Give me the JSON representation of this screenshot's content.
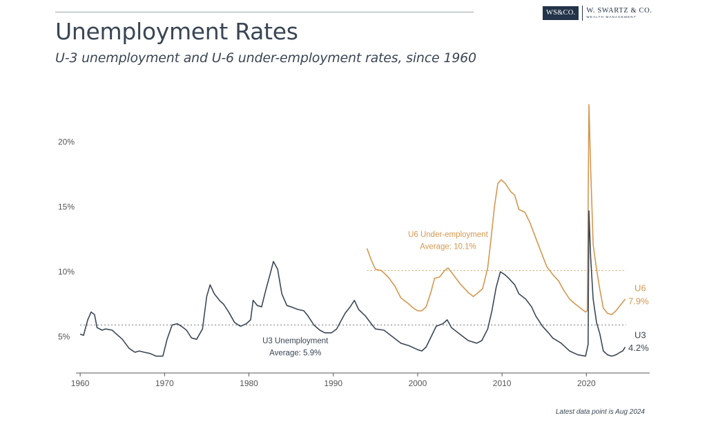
{
  "header": {
    "brand_box": "WS&CO.",
    "brand_name": "W. SWARTZ & CO.",
    "brand_sub": "WEALTH MANAGEMENT"
  },
  "footnote": "Latest data point is Aug 2024",
  "colors": {
    "u3": "#3a4654",
    "u6": "#d4974f",
    "axis": "#555555"
  },
  "chart_data": {
    "type": "line",
    "title": "Unemployment Rates",
    "subtitle": "U-3 unemployment and U-6 under-employment rates, since 1960",
    "xlabel": "",
    "ylabel": "",
    "xlim": [
      1959.5,
      2027.5
    ],
    "ylim": [
      2.2,
      23.5
    ],
    "x_ticks": [
      1960,
      1970,
      1980,
      1990,
      2000,
      2010,
      2020
    ],
    "y_ticks": [
      5,
      10,
      15,
      20
    ],
    "y_tick_labels": [
      "5%",
      "10%",
      "15%",
      "20%"
    ],
    "grid": false,
    "series": [
      {
        "name": "U3",
        "end_label": "4.2%",
        "annotation": "U3 Unemployment",
        "average_label": "Average: 5.9%",
        "average": 5.9,
        "color": "#3a4654",
        "points": [
          [
            1960,
            5.2
          ],
          [
            1960.4,
            5.1
          ],
          [
            1960.9,
            6.3
          ],
          [
            1961.3,
            6.9
          ],
          [
            1961.7,
            6.7
          ],
          [
            1962,
            5.7
          ],
          [
            1962.6,
            5.5
          ],
          [
            1963,
            5.6
          ],
          [
            1963.8,
            5.5
          ],
          [
            1964.3,
            5.2
          ],
          [
            1965,
            4.8
          ],
          [
            1965.8,
            4.1
          ],
          [
            1966.5,
            3.8
          ],
          [
            1967,
            3.9
          ],
          [
            1967.6,
            3.8
          ],
          [
            1968.3,
            3.7
          ],
          [
            1969,
            3.5
          ],
          [
            1969.8,
            3.5
          ],
          [
            1970.3,
            4.8
          ],
          [
            1970.9,
            5.9
          ],
          [
            1971.5,
            6.0
          ],
          [
            1972,
            5.8
          ],
          [
            1972.6,
            5.5
          ],
          [
            1973.2,
            4.9
          ],
          [
            1973.8,
            4.8
          ],
          [
            1974.5,
            5.6
          ],
          [
            1975,
            8.1
          ],
          [
            1975.4,
            9.0
          ],
          [
            1975.9,
            8.3
          ],
          [
            1976.5,
            7.8
          ],
          [
            1977,
            7.5
          ],
          [
            1977.6,
            6.9
          ],
          [
            1978.3,
            6.1
          ],
          [
            1979,
            5.8
          ],
          [
            1979.7,
            6.0
          ],
          [
            1980.2,
            6.3
          ],
          [
            1980.5,
            7.8
          ],
          [
            1981,
            7.4
          ],
          [
            1981.5,
            7.3
          ],
          [
            1982,
            8.6
          ],
          [
            1982.5,
            9.8
          ],
          [
            1982.9,
            10.8
          ],
          [
            1983.4,
            10.2
          ],
          [
            1983.9,
            8.3
          ],
          [
            1984.5,
            7.4
          ],
          [
            1985,
            7.3
          ],
          [
            1985.8,
            7.1
          ],
          [
            1986.5,
            7.0
          ],
          [
            1987,
            6.6
          ],
          [
            1987.7,
            5.9
          ],
          [
            1988.4,
            5.5
          ],
          [
            1989,
            5.3
          ],
          [
            1989.8,
            5.3
          ],
          [
            1990.4,
            5.6
          ],
          [
            1990.9,
            6.2
          ],
          [
            1991.4,
            6.8
          ],
          [
            1992,
            7.3
          ],
          [
            1992.5,
            7.8
          ],
          [
            1993,
            7.1
          ],
          [
            1993.8,
            6.6
          ],
          [
            1994.5,
            6.0
          ],
          [
            1995,
            5.6
          ],
          [
            1996,
            5.5
          ],
          [
            1997,
            5.0
          ],
          [
            1998,
            4.5
          ],
          [
            1999,
            4.3
          ],
          [
            2000,
            4.0
          ],
          [
            2000.5,
            3.9
          ],
          [
            2001,
            4.2
          ],
          [
            2001.6,
            5.0
          ],
          [
            2002.2,
            5.8
          ],
          [
            2003,
            6.0
          ],
          [
            2003.5,
            6.3
          ],
          [
            2004,
            5.7
          ],
          [
            2005,
            5.2
          ],
          [
            2006,
            4.7
          ],
          [
            2007,
            4.5
          ],
          [
            2007.6,
            4.7
          ],
          [
            2008.3,
            5.6
          ],
          [
            2008.8,
            7.0
          ],
          [
            2009.3,
            8.8
          ],
          [
            2009.8,
            10.0
          ],
          [
            2010.3,
            9.8
          ],
          [
            2010.8,
            9.5
          ],
          [
            2011.5,
            9.0
          ],
          [
            2012,
            8.3
          ],
          [
            2012.8,
            7.9
          ],
          [
            2013.5,
            7.3
          ],
          [
            2014,
            6.6
          ],
          [
            2014.8,
            5.8
          ],
          [
            2015.5,
            5.3
          ],
          [
            2016,
            4.9
          ],
          [
            2017,
            4.5
          ],
          [
            2018,
            3.9
          ],
          [
            2019,
            3.6
          ],
          [
            2019.9,
            3.5
          ],
          [
            2020.2,
            4.4
          ],
          [
            2020.3,
            14.7
          ],
          [
            2020.5,
            11.1
          ],
          [
            2020.8,
            7.9
          ],
          [
            2021.2,
            6.1
          ],
          [
            2021.6,
            5.2
          ],
          [
            2022,
            3.9
          ],
          [
            2022.5,
            3.6
          ],
          [
            2023,
            3.5
          ],
          [
            2023.5,
            3.6
          ],
          [
            2024,
            3.8
          ],
          [
            2024.3,
            3.9
          ],
          [
            2024.6,
            4.2
          ]
        ]
      },
      {
        "name": "U6",
        "end_label": "7.9%",
        "annotation": "U6 Under-employment",
        "average_label": "Average: 10.1%",
        "average": 10.1,
        "color": "#d4974f",
        "points": [
          [
            1994,
            11.8
          ],
          [
            1994.5,
            10.9
          ],
          [
            1995,
            10.2
          ],
          [
            1995.7,
            10.1
          ],
          [
            1996.5,
            9.6
          ],
          [
            1997.3,
            8.9
          ],
          [
            1998,
            8.0
          ],
          [
            1998.8,
            7.6
          ],
          [
            1999.5,
            7.2
          ],
          [
            2000,
            7.0
          ],
          [
            2000.5,
            7.0
          ],
          [
            2001,
            7.3
          ],
          [
            2001.6,
            8.5
          ],
          [
            2002,
            9.5
          ],
          [
            2002.6,
            9.6
          ],
          [
            2003.2,
            10.1
          ],
          [
            2003.6,
            10.3
          ],
          [
            2004.2,
            9.8
          ],
          [
            2005,
            9.1
          ],
          [
            2006,
            8.4
          ],
          [
            2006.6,
            8.1
          ],
          [
            2007,
            8.3
          ],
          [
            2007.7,
            8.7
          ],
          [
            2008.3,
            10.3
          ],
          [
            2008.7,
            12.6
          ],
          [
            2009.1,
            15.0
          ],
          [
            2009.5,
            16.8
          ],
          [
            2009.9,
            17.1
          ],
          [
            2010.4,
            16.8
          ],
          [
            2011,
            16.2
          ],
          [
            2011.5,
            15.9
          ],
          [
            2012,
            14.8
          ],
          [
            2012.7,
            14.6
          ],
          [
            2013.3,
            13.8
          ],
          [
            2014,
            12.6
          ],
          [
            2014.7,
            11.4
          ],
          [
            2015.3,
            10.4
          ],
          [
            2016,
            9.8
          ],
          [
            2016.7,
            9.3
          ],
          [
            2017.3,
            8.6
          ],
          [
            2018,
            7.9
          ],
          [
            2018.7,
            7.5
          ],
          [
            2019.3,
            7.2
          ],
          [
            2019.9,
            6.9
          ],
          [
            2020.1,
            7.0
          ],
          [
            2020.3,
            22.9
          ],
          [
            2020.5,
            18.0
          ],
          [
            2020.8,
            12.1
          ],
          [
            2021.2,
            10.2
          ],
          [
            2021.6,
            8.6
          ],
          [
            2022,
            7.2
          ],
          [
            2022.5,
            6.8
          ],
          [
            2023,
            6.7
          ],
          [
            2023.5,
            7.0
          ],
          [
            2024,
            7.4
          ],
          [
            2024.6,
            7.9
          ]
        ]
      }
    ]
  }
}
